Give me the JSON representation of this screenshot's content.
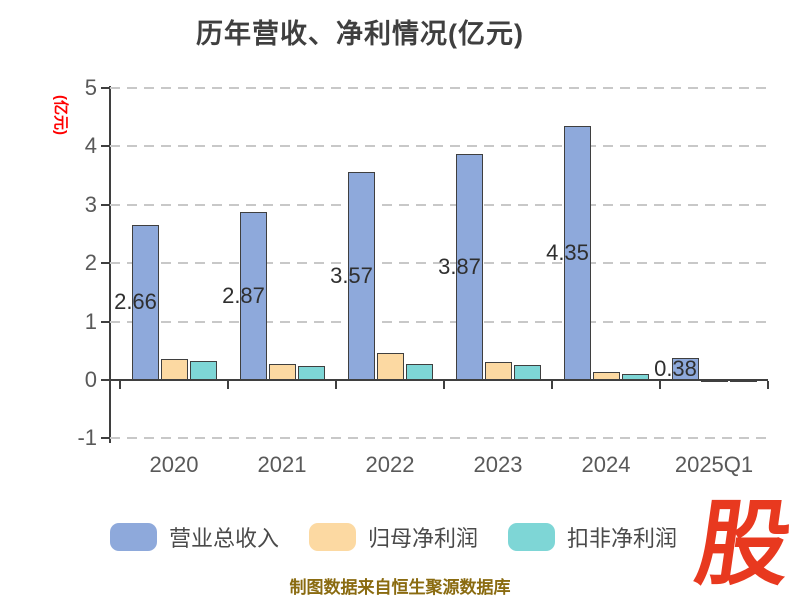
{
  "title": "历年营收、净利情况(亿元)",
  "y_axis_label": "(亿元)",
  "footer": "制图数据来自恒生聚源数据库",
  "watermark": "股",
  "chart_data": {
    "type": "bar",
    "title": "历年营收、净利情况(亿元)",
    "ylabel": "(亿元)",
    "categories": [
      "2020",
      "2021",
      "2022",
      "2023",
      "2024",
      "2025Q1"
    ],
    "series": [
      {
        "name": "营业总收入",
        "color": "#8EA9DB",
        "values": [
          2.66,
          2.87,
          3.57,
          3.87,
          4.35,
          0.38
        ],
        "labels": [
          "2.66",
          "2.87",
          "3.57",
          "3.87",
          "4.35",
          "0.38"
        ]
      },
      {
        "name": "归母净利润",
        "color": "#FCD9A2",
        "values": [
          0.36,
          0.27,
          0.47,
          0.3,
          0.13,
          -0.03
        ]
      },
      {
        "name": "扣非净利润",
        "color": "#7ED6D6",
        "values": [
          0.33,
          0.24,
          0.27,
          0.26,
          0.11,
          -0.04
        ]
      }
    ],
    "ylim": [
      -1,
      5
    ],
    "yticks": [
      5,
      4,
      3,
      2,
      1,
      0,
      -1
    ],
    "grid": "horizontal-dashed",
    "legend_position": "bottom"
  }
}
